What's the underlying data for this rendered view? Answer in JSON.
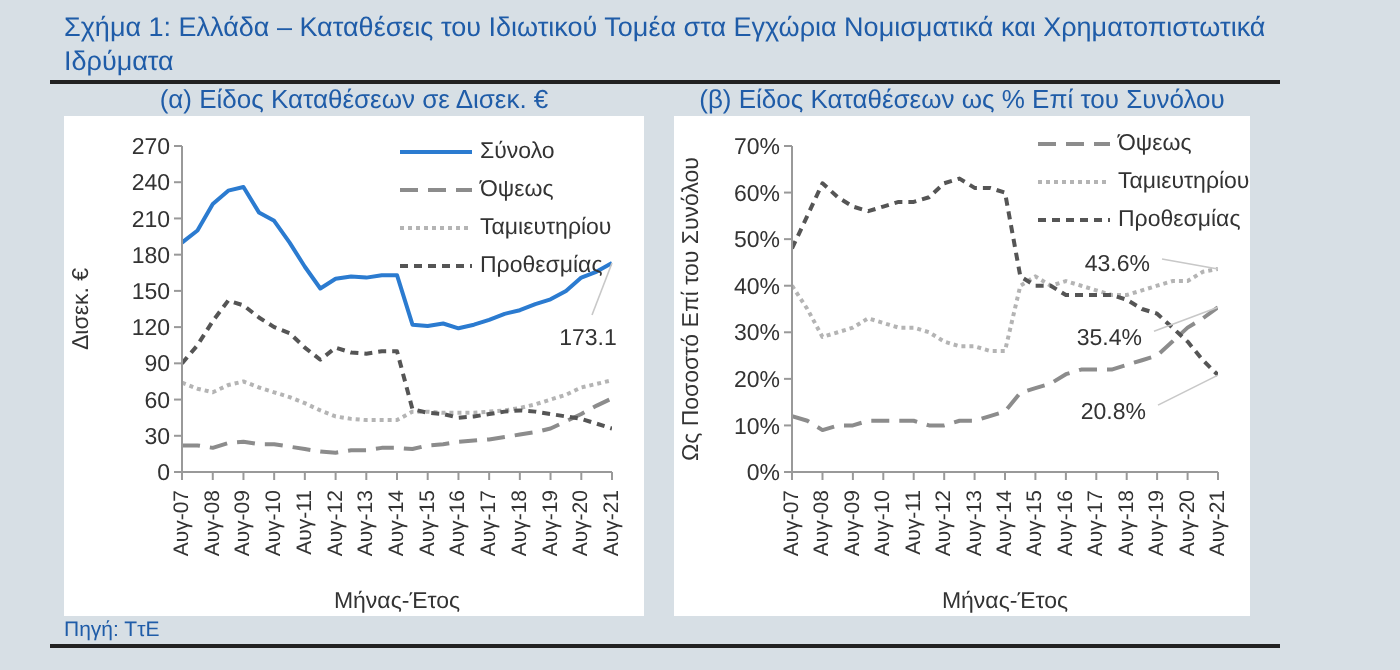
{
  "chart_data": [
    {
      "type": "line",
      "title": "Σχήμα 1: Ελλάδα – Καταθέσεις του Ιδιωτικού Τομέα στα Εγχώρια Νομισματικά και Χρηματοπιστωτικά Ιδρύματα",
      "subtitle": "(α) Είδος Καταθέσεων σε Δισεκ. €",
      "xlabel": "Μήνας-Έτος",
      "ylabel": "Δισεκ. €",
      "x": [
        "2007-08",
        "2008-02",
        "2008-08",
        "2009-02",
        "2009-08",
        "2010-02",
        "2010-08",
        "2011-02",
        "2011-08",
        "2012-02",
        "2012-08",
        "2013-02",
        "2013-08",
        "2014-02",
        "2014-08",
        "2015-02",
        "2015-08",
        "2016-02",
        "2016-08",
        "2017-02",
        "2017-08",
        "2018-02",
        "2018-08",
        "2019-02",
        "2019-08",
        "2020-02",
        "2020-08",
        "2021-02",
        "2021-08"
      ],
      "series": [
        {
          "name": "Σύνολο",
          "color": "#2b7bd0",
          "line_style": "solid",
          "values": [
            190,
            200,
            222,
            233,
            236,
            215,
            208,
            190,
            170,
            152,
            160,
            162,
            161,
            163,
            163,
            122,
            121,
            123,
            119,
            122,
            126,
            131,
            134,
            139,
            143,
            150,
            161,
            166,
            173.1
          ]
        },
        {
          "name": "Όψεως",
          "color": "#8c8c8c",
          "line_style": "dashed",
          "values": [
            22,
            22,
            20,
            24,
            25,
            23,
            23,
            21,
            19,
            17,
            16,
            18,
            18,
            20,
            20,
            19,
            22,
            23,
            25,
            26,
            27,
            29,
            31,
            33,
            36,
            42,
            48,
            55,
            61
          ]
        },
        {
          "name": "Ταμιευτηρίου",
          "color": "#b4b4b4",
          "line_style": "dotted",
          "values": [
            74,
            69,
            66,
            72,
            75,
            70,
            66,
            62,
            57,
            51,
            46,
            44,
            43,
            43,
            43,
            50,
            50,
            49,
            49,
            49,
            50,
            51,
            53,
            56,
            60,
            64,
            70,
            73,
            76
          ]
        },
        {
          "name": "Προθεσμίας",
          "color": "#555555",
          "line_style": "dashed",
          "values": [
            90,
            105,
            125,
            142,
            138,
            128,
            120,
            115,
            103,
            93,
            103,
            99,
            98,
            100,
            100,
            52,
            49,
            48,
            45,
            46,
            48,
            50,
            51,
            50,
            48,
            46,
            44,
            40,
            36
          ]
        }
      ],
      "xlim": [
        "2007-08",
        "2021-08"
      ],
      "xticks": [
        {
          "value": "2007-08",
          "label": "Αυγ-07"
        },
        {
          "value": "2008-08",
          "label": "Αυγ-08"
        },
        {
          "value": "2009-08",
          "label": "Αυγ-09"
        },
        {
          "value": "2010-08",
          "label": "Αυγ-10"
        },
        {
          "value": "2011-08",
          "label": "Αυγ-11"
        },
        {
          "value": "2012-08",
          "label": "Αυγ-12"
        },
        {
          "value": "2013-08",
          "label": "Αυγ-13"
        },
        {
          "value": "2014-08",
          "label": "Αυγ-14"
        },
        {
          "value": "2015-08",
          "label": "Αυγ-15"
        },
        {
          "value": "2016-08",
          "label": "Αυγ-16"
        },
        {
          "value": "2017-08",
          "label": "Αυγ-17"
        },
        {
          "value": "2018-08",
          "label": "Αυγ-18"
        },
        {
          "value": "2019-08",
          "label": "Αυγ-19"
        },
        {
          "value": "2020-08",
          "label": "Αυγ-20"
        },
        {
          "value": "2021-08",
          "label": "Αυγ-21"
        }
      ],
      "ylim": [
        0,
        270
      ],
      "yticks": [
        0,
        30,
        60,
        90,
        120,
        150,
        180,
        210,
        240,
        270
      ],
      "grid": false,
      "legend": "top right",
      "marker": "none",
      "annotations": [
        {
          "text": "173.1",
          "x": "2021-08",
          "y": 173.1
        },
        "Πηγή: ΤτΕ"
      ]
    },
    {
      "type": "line",
      "subtitle": "(β) Είδος Καταθέσεων ως % Επί του Συνόλου",
      "xlabel": "Μήνας-Έτος",
      "ylabel": "Ως Ποσοστό Επί του Συνόλου",
      "x": [
        "2007-08",
        "2008-02",
        "2008-08",
        "2009-02",
        "2009-08",
        "2010-02",
        "2010-08",
        "2011-02",
        "2011-08",
        "2012-02",
        "2012-08",
        "2013-02",
        "2013-08",
        "2014-02",
        "2014-08",
        "2015-02",
        "2015-08",
        "2016-02",
        "2016-08",
        "2017-02",
        "2017-08",
        "2018-02",
        "2018-08",
        "2019-02",
        "2019-08",
        "2020-02",
        "2020-08",
        "2021-02",
        "2021-08"
      ],
      "series": [
        {
          "name": "Όψεως",
          "color": "#8c8c8c",
          "line_style": "dashed",
          "values": [
            12,
            11,
            9,
            10,
            10,
            11,
            11,
            11,
            11,
            10,
            10,
            11,
            11,
            12,
            13,
            17,
            18,
            19,
            21,
            22,
            22,
            22,
            23,
            24,
            25,
            28,
            31,
            33,
            35.4
          ]
        },
        {
          "name": "Ταμιευτηρίου",
          "color": "#b4b4b4",
          "line_style": "dotted",
          "values": [
            40,
            35,
            29,
            30,
            31,
            33,
            32,
            31,
            31,
            30,
            28,
            27,
            27,
            26,
            26,
            40,
            42,
            40,
            41,
            40,
            39,
            38,
            38,
            39,
            40,
            41,
            41,
            43,
            43.6
          ]
        },
        {
          "name": "Προθεσμίας",
          "color": "#555555",
          "line_style": "dashed",
          "values": [
            48,
            55,
            62,
            59,
            57,
            56,
            57,
            58,
            58,
            59,
            62,
            63,
            61,
            61,
            60,
            42,
            40,
            40,
            38,
            38,
            38,
            38,
            37,
            35,
            34,
            31,
            28,
            24,
            20.8
          ]
        }
      ],
      "xlim": [
        "2007-08",
        "2021-08"
      ],
      "xticks": [
        {
          "value": "2007-08",
          "label": "Αυγ-07"
        },
        {
          "value": "2008-08",
          "label": "Αυγ-08"
        },
        {
          "value": "2009-08",
          "label": "Αυγ-09"
        },
        {
          "value": "2010-08",
          "label": "Αυγ-10"
        },
        {
          "value": "2011-08",
          "label": "Αυγ-11"
        },
        {
          "value": "2012-08",
          "label": "Αυγ-12"
        },
        {
          "value": "2013-08",
          "label": "Αυγ-13"
        },
        {
          "value": "2014-08",
          "label": "Αυγ-14"
        },
        {
          "value": "2015-08",
          "label": "Αυγ-15"
        },
        {
          "value": "2016-08",
          "label": "Αυγ-16"
        },
        {
          "value": "2017-08",
          "label": "Αυγ-17"
        },
        {
          "value": "2018-08",
          "label": "Αυγ-18"
        },
        {
          "value": "2019-08",
          "label": "Αυγ-19"
        },
        {
          "value": "2020-08",
          "label": "Αυγ-20"
        },
        {
          "value": "2021-08",
          "label": "Αυγ-21"
        }
      ],
      "ylim": [
        0,
        70
      ],
      "yticks": [
        {
          "value": 0,
          "label": "0%"
        },
        {
          "value": 10,
          "label": "10%"
        },
        {
          "value": 20,
          "label": "20%"
        },
        {
          "value": 30,
          "label": "30%"
        },
        {
          "value": 40,
          "label": "40%"
        },
        {
          "value": 50,
          "label": "50%"
        },
        {
          "value": 60,
          "label": "60%"
        },
        {
          "value": 70,
          "label": "70%"
        }
      ],
      "grid": false,
      "legend": "top right",
      "marker": "none",
      "annotations": [
        {
          "text": "43.6%",
          "x": "2021-08",
          "y": 43.6
        },
        {
          "text": "35.4%",
          "x": "2021-08",
          "y": 35.4
        },
        {
          "text": "20.8%",
          "x": "2021-08",
          "y": 20.8
        }
      ]
    }
  ]
}
